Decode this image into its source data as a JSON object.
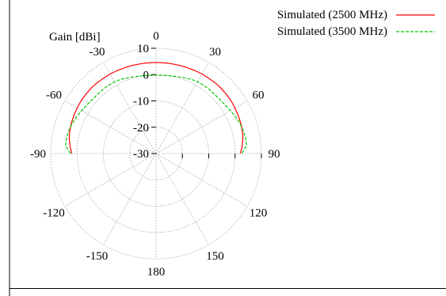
{
  "chart_data": {
    "type": "polar",
    "radial_label": "Gain [dBi]",
    "radial_range": [
      -30,
      10
    ],
    "radial_ticks": [
      10,
      0,
      -10,
      -20,
      -30
    ],
    "angle_range": [
      -90,
      90
    ],
    "angle_labels": [
      "0",
      "30",
      "60",
      "90",
      "120",
      "150",
      "180",
      "-150",
      "-120",
      "-90",
      "-60",
      "-30"
    ],
    "angle_label_values": [
      0,
      30,
      60,
      90,
      120,
      150,
      180,
      -150,
      -120,
      -90,
      -60,
      -30
    ],
    "grid": true,
    "legend_position": "top-right",
    "series": [
      {
        "name": "Simulated (2500 MHz)",
        "color": "#ff0000",
        "dash": "solid",
        "theta": [
          -90,
          -85,
          -80,
          -75,
          -70,
          -65,
          -60,
          -55,
          -50,
          -45,
          -40,
          -35,
          -30,
          -25,
          -20,
          -15,
          -10,
          -5,
          0,
          5,
          10,
          15,
          20,
          25,
          30,
          35,
          40,
          45,
          50,
          55,
          60,
          65,
          70,
          75,
          80,
          85,
          90
        ],
        "gain": [
          2.0,
          2.8,
          3.5,
          3.9,
          4.2,
          4.4,
          4.6,
          4.8,
          4.9,
          5.0,
          5.0,
          4.9,
          4.9,
          4.8,
          4.7,
          4.7,
          4.6,
          4.6,
          4.6,
          4.6,
          4.6,
          4.7,
          4.7,
          4.8,
          4.9,
          4.9,
          5.0,
          5.0,
          4.9,
          4.8,
          4.6,
          4.4,
          4.2,
          3.9,
          3.5,
          2.8,
          2.0
        ]
      },
      {
        "name": "Simulated (3500 MHz)",
        "color": "#00c800",
        "dash": "dashed",
        "theta": [
          -90,
          -85,
          -80,
          -75,
          -70,
          -65,
          -60,
          -55,
          -50,
          -45,
          -40,
          -35,
          -30,
          -25,
          -20,
          -15,
          -10,
          -5,
          0,
          5,
          10,
          15,
          20,
          25,
          30,
          35,
          40,
          45,
          50,
          55,
          60,
          65,
          70,
          75,
          80,
          85,
          90
        ],
        "gain": [
          2.5,
          4.5,
          4.5,
          4.2,
          3.8,
          3.2,
          2.6,
          2.1,
          1.8,
          1.6,
          1.6,
          1.6,
          1.5,
          1.2,
          0.7,
          0.3,
          0.0,
          -0.2,
          -0.2,
          -0.2,
          0.0,
          0.3,
          0.7,
          1.2,
          1.5,
          1.6,
          1.6,
          1.6,
          1.8,
          2.1,
          2.6,
          3.2,
          3.8,
          4.2,
          4.5,
          4.5,
          2.5
        ]
      }
    ]
  }
}
